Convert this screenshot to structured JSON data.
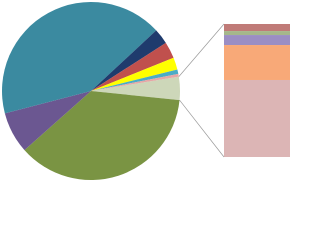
{
  "chart_data": {
    "type": "pie",
    "values": [
      4.2,
      36.7,
      7.5,
      42,
      2.8,
      3,
      2.2,
      0.8,
      0.5
    ],
    "colors": [
      "#cdd7b9",
      "#7a9443",
      "#6b5791",
      "#3b8aa0",
      "#1f3b6d",
      "#c0504d",
      "#ffff00",
      "#4bacc6",
      "#e6a7a6"
    ],
    "split_index": 0,
    "detail_values": [
      5.3,
      3,
      7.5,
      26.3,
      57.9
    ],
    "detail_colors": [
      "#c07b78",
      "#a5b78b",
      "#9b8ec4",
      "#f8a978",
      "#dcb5b5"
    ]
  }
}
